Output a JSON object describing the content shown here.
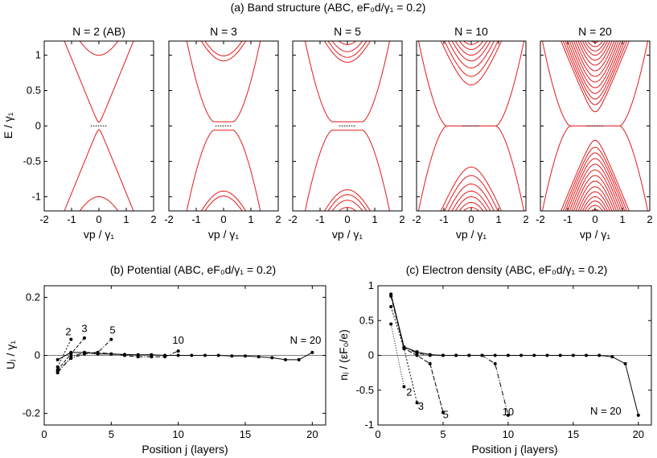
{
  "figure": {
    "title_a": "(a) Band structure (ABC, eF₀d/γ₁ = 0.2)",
    "title_b": "(b) Potential (ABC, eF₀d/γ₁ = 0.2)",
    "title_c": "(c) Electron density (ABC, eF₀d/γ₁ = 0.2)"
  },
  "colors": {
    "band": "#e41a1c",
    "line": "#000000",
    "frame": "#000000"
  },
  "chart_data": [
    {
      "type": "line",
      "panel": "a",
      "ylabel": "E / γ₁",
      "xlabel": "vp / γ₁",
      "xlim": [
        -2,
        2
      ],
      "ylim": [
        -1.2,
        1.2
      ],
      "xticks": [
        "-2",
        "-1",
        "0",
        "1",
        "2"
      ],
      "yticks": [
        "-1",
        "-0.5",
        "0",
        "0.5",
        "1"
      ],
      "subplots": [
        {
          "title": "N = 2 (AB)",
          "N": 2,
          "edge_bands": [
            1.0
          ],
          "gap_edge": 0.05
        },
        {
          "title": "N = 3",
          "N": 3,
          "edge_bands": [
            0.92,
            0.99
          ],
          "gap_edge": 0.06
        },
        {
          "title": "N = 5",
          "N": 5,
          "edge_bands": [
            0.9,
            0.97,
            1.05,
            1.15
          ],
          "gap_edge": 0.06
        },
        {
          "title": "N = 10",
          "N": 10,
          "edge_bands": [
            0.58,
            0.7,
            0.82,
            0.92,
            1.0,
            1.08,
            1.15,
            1.2
          ],
          "gap_edge": 0.0
        },
        {
          "title": "N = 20",
          "N": 20,
          "edge_bands": [
            0.2,
            0.3,
            0.38,
            0.46,
            0.54,
            0.62,
            0.7,
            0.78,
            0.86,
            0.93,
            1.0,
            1.06,
            1.12,
            1.18
          ],
          "gap_edge": 0.0
        }
      ]
    },
    {
      "type": "line",
      "panel": "b",
      "title": "(b) Potential (ABC, eF₀d/γ₁ = 0.2)",
      "xlabel": "Position j (layers)",
      "ylabel": "Uⱼ / γ₁",
      "xlim": [
        0,
        21
      ],
      "ylim": [
        -0.24,
        0.24
      ],
      "xticks": [
        "0",
        "5",
        "10",
        "15",
        "20"
      ],
      "yticks": [
        "-0.2",
        "0",
        "0.2"
      ],
      "series": [
        {
          "name": "2",
          "x": [
            1,
            2
          ],
          "y": [
            -0.04,
            0.055
          ]
        },
        {
          "name": "3",
          "x": [
            1,
            2,
            3
          ],
          "y": [
            -0.05,
            0.005,
            0.06
          ]
        },
        {
          "name": "5",
          "x": [
            1,
            2,
            3,
            4,
            5
          ],
          "y": [
            -0.055,
            -0.01,
            0.005,
            0.01,
            0.055
          ]
        },
        {
          "name": "10",
          "x": [
            1,
            2,
            3,
            4,
            5,
            6,
            7,
            8,
            9,
            10
          ],
          "y": [
            -0.06,
            -0.005,
            0.01,
            0.01,
            0.005,
            0.0,
            -0.005,
            -0.005,
            -0.005,
            0.015
          ]
        },
        {
          "name": "N = 20",
          "x": [
            1,
            2,
            3,
            4,
            5,
            6,
            7,
            8,
            9,
            10,
            11,
            12,
            13,
            14,
            15,
            16,
            17,
            18,
            19,
            20
          ],
          "y": [
            -0.015,
            0.01,
            0.01,
            0.005,
            0.005,
            0.003,
            0.002,
            0.002,
            0.0,
            0.0,
            0.0,
            0.0,
            0.0,
            -0.002,
            -0.002,
            -0.005,
            -0.008,
            -0.015,
            -0.015,
            0.01
          ]
        }
      ],
      "labels": [
        "2",
        "3",
        "5",
        "10",
        "N = 20"
      ]
    },
    {
      "type": "line",
      "panel": "c",
      "title": "(c) Electron density (ABC, eF₀d/γ₁ = 0.2)",
      "xlabel": "Position j (layers)",
      "ylabel": "nⱼ / (εF₀/e)",
      "xlim": [
        0,
        21
      ],
      "ylim": [
        -1.0,
        1.0
      ],
      "xticks": [
        "0",
        "5",
        "10",
        "15",
        "20"
      ],
      "yticks": [
        "-1",
        "-0.5",
        "0",
        "0.5",
        "1"
      ],
      "series": [
        {
          "name": "2",
          "x": [
            1,
            2
          ],
          "y": [
            0.45,
            -0.45
          ]
        },
        {
          "name": "3",
          "x": [
            1,
            2,
            3
          ],
          "y": [
            0.7,
            0.1,
            -0.68
          ]
        },
        {
          "name": "5",
          "x": [
            1,
            2,
            3,
            4,
            5
          ],
          "y": [
            0.85,
            0.1,
            0.0,
            -0.12,
            -0.82
          ]
        },
        {
          "name": "10",
          "x": [
            1,
            2,
            3,
            4,
            5,
            6,
            7,
            8,
            9,
            10
          ],
          "y": [
            0.87,
            0.12,
            0.03,
            0.0,
            0.0,
            0.0,
            0.0,
            0.0,
            -0.12,
            -0.86
          ]
        },
        {
          "name": "N = 20",
          "x": [
            1,
            2,
            3,
            4,
            5,
            6,
            7,
            8,
            9,
            10,
            11,
            12,
            13,
            14,
            15,
            16,
            17,
            18,
            19,
            20
          ],
          "y": [
            0.88,
            0.12,
            0.05,
            0.01,
            0.0,
            0.0,
            0.0,
            0.0,
            0.0,
            0.0,
            0.0,
            0.0,
            0.0,
            0.0,
            0.0,
            0.0,
            0.0,
            -0.02,
            -0.12,
            -0.86
          ]
        }
      ],
      "labels": [
        "2",
        "3",
        "5",
        "10",
        "N = 20"
      ]
    }
  ]
}
